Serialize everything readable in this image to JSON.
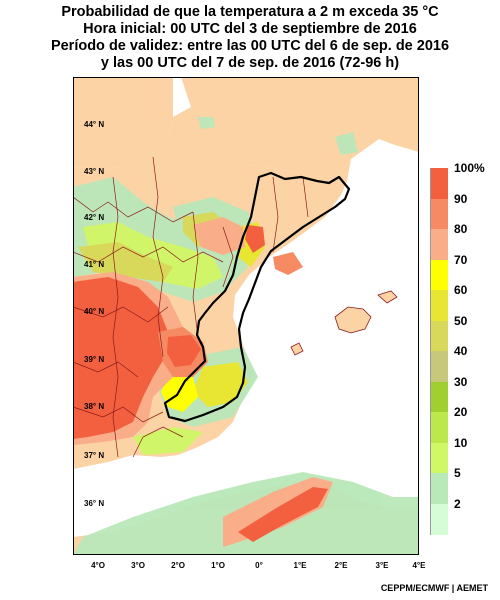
{
  "title": {
    "line1": "Probabilidad de que la temperatura a 2 m exceda 35 °C",
    "line2": "Hora inicial: 00 UTC del 3 de septiembre de 2016",
    "line3": "Período de validez: entre las 00 UTC del 6 de sep. de 2016",
    "line4": "y las 00 UTC del 7 de sep. de 2016 (72-96 h)"
  },
  "latitude_labels": [
    "44° N",
    "43° N",
    "42° N",
    "41° N",
    "40° N",
    "39° N",
    "38° N",
    "37° N",
    "36° N"
  ],
  "longitude_labels": [
    "4°O",
    "3°O",
    "2°O",
    "1°O",
    "0°",
    "1°E",
    "2°E",
    "3°E",
    "4°E"
  ],
  "legend": {
    "labels": [
      "100%",
      "90",
      "80",
      "70",
      "60",
      "50",
      "40",
      "30",
      "20",
      "10",
      "5",
      "2"
    ],
    "colors": [
      "#f26040",
      "#f58a63",
      "#f9ad88",
      "#ffff00",
      "#e8e632",
      "#d8d85a",
      "#c8c87a",
      "#a0d030",
      "#bde84c",
      "#cff766",
      "#b9e8b9",
      "#d6fcd6"
    ]
  },
  "colors": {
    "land": "#fbd3a4",
    "sea": "#ffffff",
    "border_outline": "#000000",
    "admin_borders": "#8b1a1a"
  },
  "credit": "CEPPM/ECMWF | AEMET"
}
